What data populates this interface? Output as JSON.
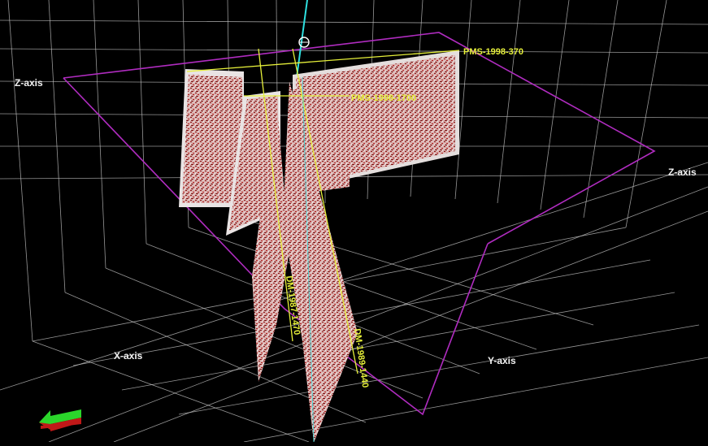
{
  "viewer": {
    "axes": {
      "z_left": "Z-axis",
      "z_right": "Z-axis",
      "x": "X-axis",
      "y": "Y-axis"
    },
    "seismic_lines": [
      {
        "id": "PMS-1998-370"
      },
      {
        "id": "PMS-1998-1700"
      },
      {
        "id": "DM-1987-1470"
      },
      {
        "id": "DM-1989-1440"
      }
    ],
    "colors": {
      "background": "#000000",
      "grid": "#c9c9c9",
      "bounding_box": "#b02cc0",
      "line_annotation": "#e6f03a",
      "well_path": "#2ee0e0",
      "seismic_panel": "#c87a78"
    },
    "orientation_indicator": {
      "icon": "navigation-arrow-icon"
    }
  }
}
